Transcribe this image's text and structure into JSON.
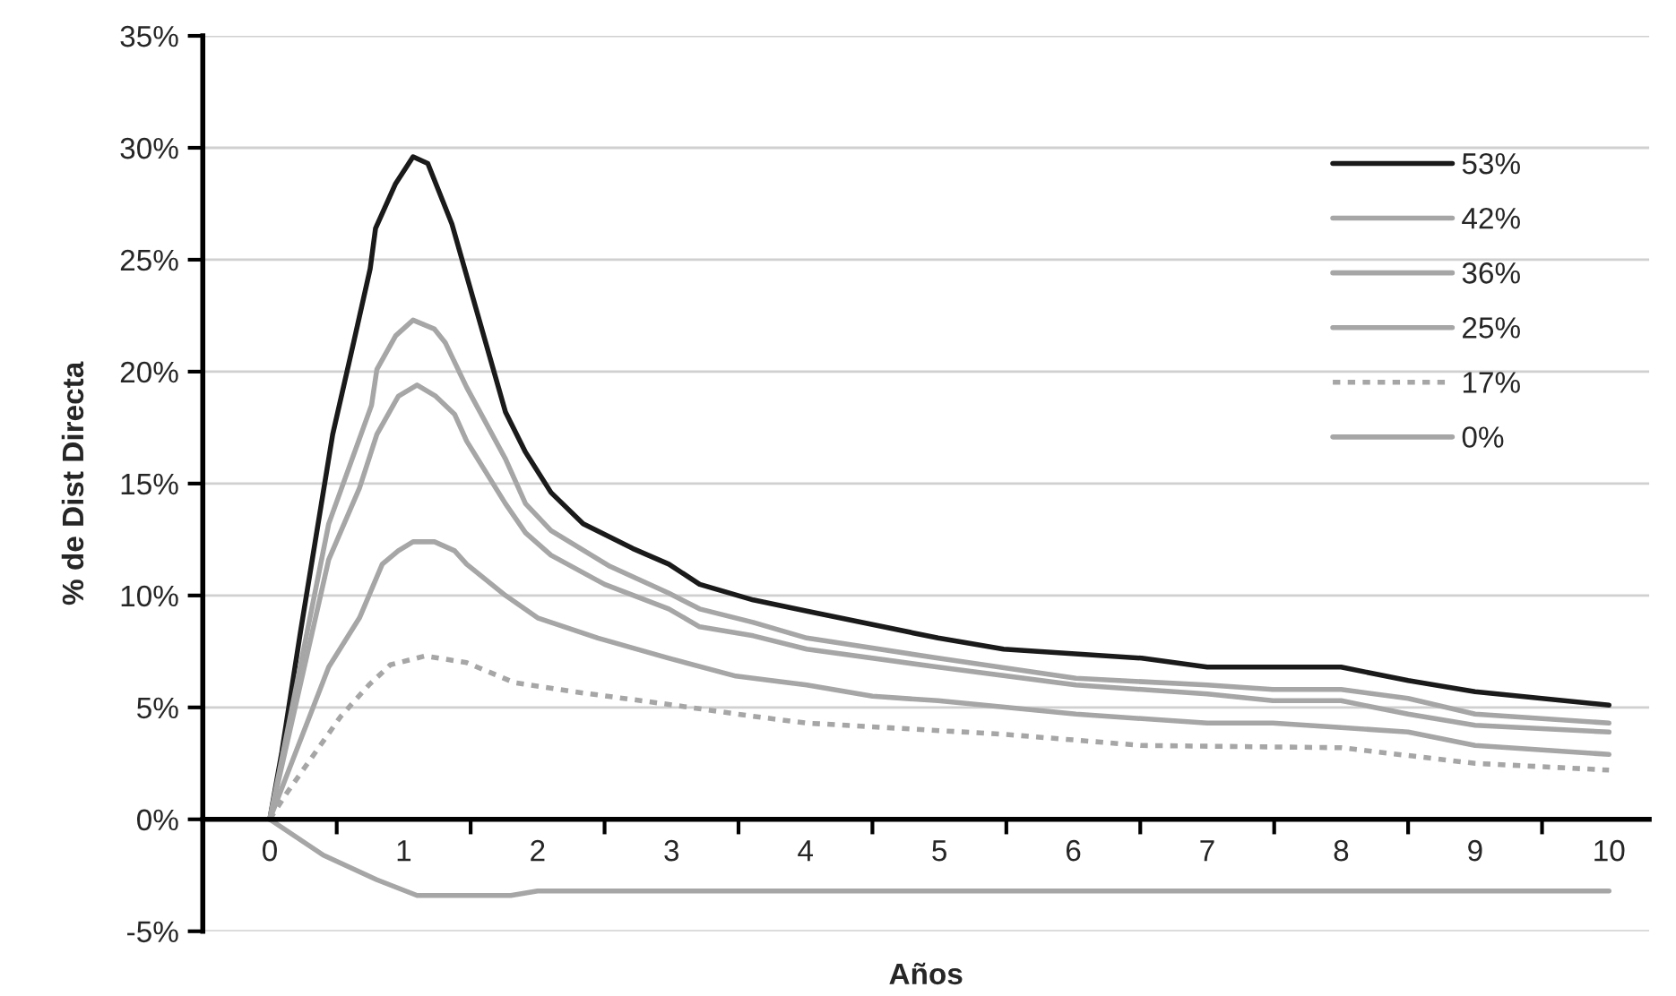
{
  "chart_data": {
    "type": "line",
    "xlabel": "Años",
    "ylabel": "% de Dist Directa",
    "xlim": [
      -0.5,
      10.3
    ],
    "ylim": [
      -5,
      35
    ],
    "xticks": [
      0,
      {
        "value": 0.5,
        "label": null
      },
      1,
      {
        "value": 1.5,
        "label": null
      },
      2,
      {
        "value": 2.5,
        "label": null
      },
      3,
      {
        "value": 3.5,
        "label": null
      },
      4,
      {
        "value": 4.5,
        "label": null
      },
      5,
      {
        "value": 5.5,
        "label": null
      },
      6,
      {
        "value": 6.5,
        "label": null
      },
      7,
      {
        "value": 7.5,
        "label": null
      },
      8,
      {
        "value": 8.5,
        "label": null
      },
      9,
      {
        "value": 9.5,
        "label": null
      },
      10
    ],
    "yticks": [
      {
        "value": -5,
        "label": "-5%"
      },
      {
        "value": 0,
        "label": "0%"
      },
      {
        "value": 5,
        "label": "5%"
      },
      {
        "value": 10,
        "label": "10%"
      },
      {
        "value": 15,
        "label": "15%"
      },
      {
        "value": 20,
        "label": "20%"
      },
      {
        "value": 25,
        "label": "25%"
      },
      {
        "value": 30,
        "label": "30%"
      },
      {
        "value": 35,
        "label": "35%"
      }
    ],
    "grid": "y",
    "legend": "top right",
    "marker": "none",
    "series": [
      {
        "name": "53%",
        "color": "#1a1a1a",
        "line_style": "solid",
        "x": [
          0,
          0.09,
          0.23,
          0.47,
          0.63,
          0.75,
          0.79,
          0.94,
          1.07,
          1.18,
          1.36,
          1.76,
          1.91,
          2.1,
          2.34,
          2.71,
          2.98,
          3.21,
          3.61,
          4.01,
          4.99,
          5.48,
          6.51,
          7.0,
          8.0,
          8.5,
          9.0,
          10
        ],
        "values": [
          0,
          3.0,
          8.4,
          17.2,
          21.4,
          24.6,
          26.4,
          28.4,
          29.6,
          29.3,
          26.6,
          18.2,
          16.4,
          14.6,
          13.2,
          12.1,
          11.4,
          10.5,
          9.8,
          9.3,
          8.1,
          7.6,
          7.2,
          6.8,
          6.8,
          6.2,
          5.7,
          5.1
        ]
      },
      {
        "name": "42%",
        "color": "#a6a6a6",
        "line_style": "solid",
        "x": [
          0,
          0.44,
          0.76,
          0.8,
          0.94,
          1.07,
          1.23,
          1.31,
          1.47,
          1.76,
          1.91,
          2.1,
          2.54,
          2.98,
          3.21,
          3.61,
          4.01,
          4.99,
          6.02,
          7.0,
          7.49,
          8.0,
          8.5,
          9.0,
          10
        ],
        "values": [
          0,
          13.2,
          18.5,
          20.1,
          21.6,
          22.3,
          21.9,
          21.3,
          19.3,
          16.1,
          14.1,
          12.9,
          11.3,
          10.1,
          9.4,
          8.8,
          8.1,
          7.2,
          6.3,
          6.0,
          5.8,
          5.8,
          5.4,
          4.7,
          4.3
        ]
      },
      {
        "name": "36%",
        "color": "#a6a6a6",
        "line_style": "solid",
        "x": [
          0,
          0.44,
          0.67,
          0.8,
          0.96,
          1.1,
          1.24,
          1.38,
          1.47,
          1.76,
          1.91,
          2.1,
          2.5,
          2.98,
          3.21,
          3.61,
          4.01,
          4.99,
          6.02,
          7.0,
          7.49,
          8.0,
          8.5,
          9.0,
          10
        ],
        "values": [
          0,
          11.6,
          14.8,
          17.2,
          18.9,
          19.4,
          18.9,
          18.1,
          16.9,
          14.1,
          12.8,
          11.8,
          10.5,
          9.4,
          8.6,
          8.2,
          7.6,
          6.8,
          6.0,
          5.6,
          5.3,
          5.3,
          4.7,
          4.2,
          3.9
        ]
      },
      {
        "name": "25%",
        "color": "#a6a6a6",
        "line_style": "solid",
        "x": [
          0,
          0.44,
          0.67,
          0.84,
          0.96,
          1.07,
          1.23,
          1.38,
          1.47,
          1.76,
          2.0,
          2.45,
          2.98,
          3.48,
          4.01,
          4.5,
          4.99,
          6.02,
          7.0,
          7.49,
          8.0,
          8.5,
          9.0,
          10
        ],
        "values": [
          0,
          6.8,
          9.0,
          11.4,
          12.0,
          12.4,
          12.4,
          12.0,
          11.4,
          10.0,
          9.0,
          8.1,
          7.2,
          6.4,
          6.0,
          5.5,
          5.3,
          4.7,
          4.3,
          4.3,
          4.1,
          3.9,
          3.3,
          2.9
        ]
      },
      {
        "name": "17%",
        "color": "#a6a6a6",
        "line_style": "dotted",
        "x": [
          0,
          0.13,
          0.53,
          0.74,
          0.9,
          1.16,
          1.47,
          1.83,
          2.27,
          2.9,
          3.61,
          4.01,
          5.48,
          6.51,
          8.0,
          9.0,
          10
        ],
        "values": [
          0,
          1.2,
          4.6,
          6.0,
          6.9,
          7.3,
          7.0,
          6.1,
          5.7,
          5.2,
          4.6,
          4.3,
          3.8,
          3.3,
          3.2,
          2.5,
          2.2
        ]
      },
      {
        "name": "0%",
        "color": "#a6a6a6",
        "line_style": "solid",
        "x": [
          0,
          0.4,
          0.8,
          1.1,
          1.8,
          2.0,
          10
        ],
        "values": [
          0,
          -1.6,
          -2.7,
          -3.4,
          -3.4,
          -3.2,
          -3.2
        ]
      }
    ]
  }
}
